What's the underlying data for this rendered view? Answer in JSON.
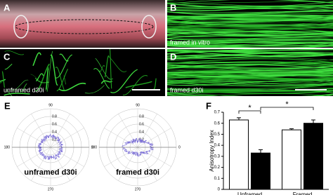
{
  "panels": [
    {
      "letter": "A"
    },
    {
      "letter": "B",
      "caption": "framed in vitro"
    },
    {
      "letter": "C",
      "caption": "unframed d30i"
    },
    {
      "letter": "D",
      "caption": "framed d30i"
    },
    {
      "letter": "E",
      "polar_plots": [
        {
          "label": "unframed d30i"
        },
        {
          "label": "framed d30i"
        }
      ],
      "angle_labels": [
        90,
        0,
        180,
        270
      ],
      "radius_labels": [
        0.8,
        0.6,
        0.4,
        0.2
      ]
    },
    {
      "letter": "F"
    }
  ],
  "chart_data": {
    "type": "bar",
    "y_label": "Anisotropy Index",
    "categories": [
      "Unframed",
      "Framed"
    ],
    "series": [
      {
        "color": "#ffffff",
        "values": [
          0.63,
          0.54
        ],
        "errors": [
          0.02,
          0.01
        ]
      },
      {
        "color": "#000000",
        "values": [
          0.33,
          0.6
        ],
        "errors": [
          0.03,
          0.03
        ]
      }
    ],
    "annotations": [
      "*",
      "*"
    ],
    "ylim": [
      0,
      0.7
    ],
    "yticks": [
      0,
      0.1,
      0.2,
      0.3,
      0.4,
      0.5,
      0.6,
      0.7
    ]
  }
}
